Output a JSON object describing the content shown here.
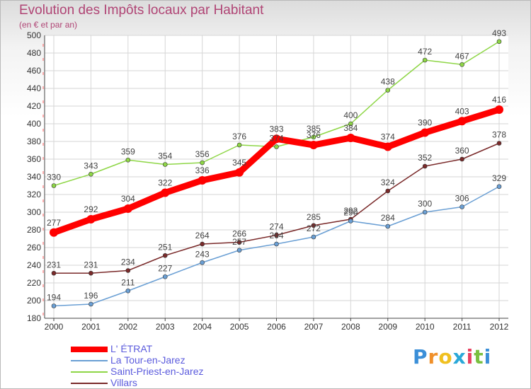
{
  "chart_data": {
    "type": "line",
    "title": "Evolution des Impôts locaux par Habitant",
    "subtitle": "(en € et par an)",
    "xlabel": "",
    "ylabel": "",
    "x": [
      "2000",
      "2001",
      "2002",
      "2003",
      "2004",
      "2005",
      "2006",
      "2007",
      "2008",
      "2009",
      "2010",
      "2011",
      "2012"
    ],
    "ylim": [
      180,
      500
    ],
    "yticks": [
      180,
      200,
      220,
      240,
      260,
      280,
      300,
      320,
      340,
      360,
      380,
      400,
      420,
      440,
      460,
      480,
      500
    ],
    "grid": true,
    "legend_position": "bottom-left",
    "series": [
      {
        "name": "Saint-Priest-en-Jarez",
        "color": "#8ed646",
        "values": [
          330,
          343,
          359,
          354,
          356,
          376,
          374,
          385,
          400,
          438,
          472,
          467,
          493
        ]
      },
      {
        "name": "Villars",
        "color": "#7a2a2a",
        "values": [
          231,
          231,
          234,
          251,
          264,
          266,
          274,
          285,
          292,
          324,
          352,
          360,
          378
        ]
      },
      {
        "name": "La Tour-en-Jarez",
        "color": "#6a9fd4",
        "values": [
          194,
          196,
          211,
          227,
          243,
          257,
          264,
          272,
          290,
          284,
          300,
          306,
          329
        ]
      },
      {
        "name": "L' ÉTRAT",
        "color": "#ff0000",
        "values": [
          277,
          292,
          304,
          322,
          336,
          345,
          383,
          376,
          384,
          374,
          390,
          403,
          416
        ]
      }
    ]
  },
  "legend": {
    "items": [
      {
        "label": "L' ÉTRAT",
        "color": "#ff0000"
      },
      {
        "label": "La Tour-en-Jarez",
        "color": "#6a9fd4"
      },
      {
        "label": "Saint-Priest-en-Jarez",
        "color": "#8ed646"
      },
      {
        "label": "Villars",
        "color": "#7a2a2a"
      }
    ]
  },
  "logo": {
    "letters": [
      "P",
      "r",
      "o",
      "x",
      "i",
      "t",
      "i"
    ],
    "colors": [
      "#3b8fd8",
      "#f0902a",
      "#f0c020",
      "#2aa8d8",
      "#e84060",
      "#7ac040",
      "#3b8fd8"
    ]
  }
}
